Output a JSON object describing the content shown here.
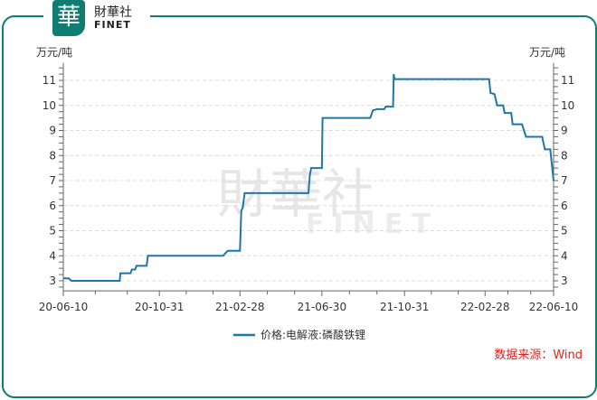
{
  "logo": {
    "glyph": "華",
    "name": "財華社",
    "sub": "FINET"
  },
  "source": "数据来源：Wind",
  "chart_data": {
    "type": "line",
    "ylabel_left": "万元/吨",
    "ylabel_right": "万元/吨",
    "ylim": [
      2.6,
      11.7
    ],
    "yticks": [
      3,
      4,
      5,
      6,
      7,
      8,
      9,
      10,
      11
    ],
    "xticks": [
      "20-06-10",
      "20-10-31",
      "21-02-28",
      "21-06-30",
      "21-10-31",
      "22-02-28",
      "22-06-10"
    ],
    "grid": true,
    "legend_position": "bottom",
    "series": [
      {
        "name": "价格:电解液:磷酸铁锂",
        "color": "#1f77a8",
        "points": [
          [
            "2020-06-10",
            3.1
          ],
          [
            "2020-06-18",
            3.1
          ],
          [
            "2020-06-22",
            3.0
          ],
          [
            "2020-09-02",
            3.0
          ],
          [
            "2020-09-03",
            3.3
          ],
          [
            "2020-09-18",
            3.3
          ],
          [
            "2020-09-20",
            3.45
          ],
          [
            "2020-09-25",
            3.45
          ],
          [
            "2020-09-27",
            3.6
          ],
          [
            "2020-10-12",
            3.6
          ],
          [
            "2020-10-14",
            4.0
          ],
          [
            "2021-02-03",
            4.0
          ],
          [
            "2021-02-08",
            4.15
          ],
          [
            "2021-02-10",
            4.2
          ],
          [
            "2021-02-28",
            4.2
          ],
          [
            "2021-03-02",
            5.8
          ],
          [
            "2021-03-04",
            5.9
          ],
          [
            "2021-03-07",
            6.5
          ],
          [
            "2021-06-10",
            6.5
          ],
          [
            "2021-06-12",
            7.2
          ],
          [
            "2021-06-14",
            7.5
          ],
          [
            "2021-06-30",
            7.5
          ],
          [
            "2021-07-01",
            9.5
          ],
          [
            "2021-09-10",
            9.5
          ],
          [
            "2021-09-14",
            9.8
          ],
          [
            "2021-09-20",
            9.85
          ],
          [
            "2021-10-01",
            9.85
          ],
          [
            "2021-10-03",
            9.95
          ],
          [
            "2021-10-14",
            9.95
          ],
          [
            "2021-10-15",
            11.25
          ],
          [
            "2021-10-16",
            11.05
          ],
          [
            "2022-03-06",
            11.05
          ],
          [
            "2022-03-08",
            10.5
          ],
          [
            "2022-03-14",
            10.45
          ],
          [
            "2022-03-18",
            10.0
          ],
          [
            "2022-03-27",
            10.0
          ],
          [
            "2022-03-29",
            9.7
          ],
          [
            "2022-04-08",
            9.7
          ],
          [
            "2022-04-10",
            9.25
          ],
          [
            "2022-04-24",
            9.25
          ],
          [
            "2022-04-30",
            8.75
          ],
          [
            "2022-05-24",
            8.75
          ],
          [
            "2022-05-28",
            8.25
          ],
          [
            "2022-06-05",
            8.25
          ],
          [
            "2022-06-10",
            7.0
          ]
        ]
      }
    ]
  }
}
